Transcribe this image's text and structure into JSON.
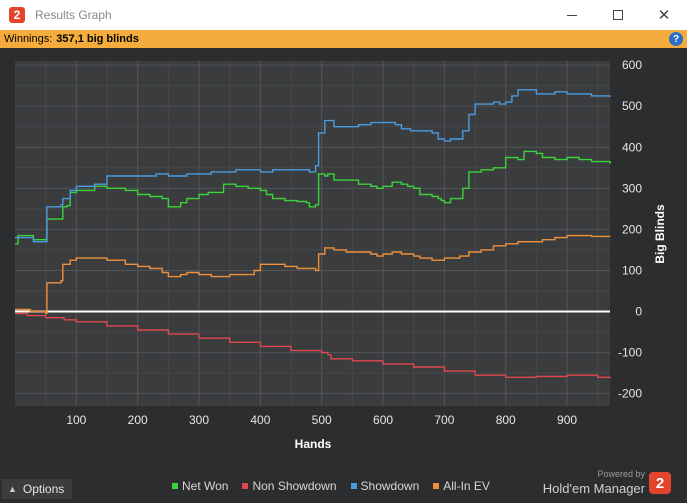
{
  "window": {
    "title": "Results Graph",
    "app_icon_glyph": "2"
  },
  "winnings": {
    "label": "Winnings:",
    "value": "357,1 big blinds"
  },
  "help_glyph": "?",
  "footer": {
    "options_label": "Options",
    "powered_by": "Powered by",
    "brand": "Hold'em Manager",
    "brand_logo_glyph": "2"
  },
  "chart_data": {
    "type": "line",
    "xlabel": "Hands",
    "ylabel": "Big Blinds",
    "xlim": [
      0,
      970
    ],
    "ylim": [
      -230,
      610
    ],
    "x_ticks": [
      100,
      200,
      300,
      400,
      500,
      600,
      700,
      800,
      900
    ],
    "y_ticks": [
      600,
      500,
      400,
      300,
      200,
      100,
      0,
      -100,
      -200
    ],
    "grid": true,
    "legend_position": "bottom",
    "colors": {
      "Net Won": "#3bd33b",
      "Non Showdown": "#e0474f",
      "Showdown": "#4a9be0",
      "All-In EV": "#ee913a",
      "zero_line": "#ffffff"
    },
    "series": [
      {
        "name": "Net Won",
        "points": [
          [
            0,
            165
          ],
          [
            5,
            185
          ],
          [
            25,
            185
          ],
          [
            30,
            175
          ],
          [
            50,
            175
          ],
          [
            52,
            225
          ],
          [
            75,
            225
          ],
          [
            78,
            255
          ],
          [
            85,
            258
          ],
          [
            90,
            290
          ],
          [
            100,
            295
          ],
          [
            130,
            305
          ],
          [
            150,
            300
          ],
          [
            180,
            295
          ],
          [
            200,
            285
          ],
          [
            220,
            280
          ],
          [
            240,
            275
          ],
          [
            250,
            255
          ],
          [
            270,
            265
          ],
          [
            280,
            275
          ],
          [
            300,
            285
          ],
          [
            315,
            290
          ],
          [
            330,
            290
          ],
          [
            340,
            310
          ],
          [
            360,
            305
          ],
          [
            380,
            300
          ],
          [
            400,
            295
          ],
          [
            410,
            285
          ],
          [
            420,
            275
          ],
          [
            440,
            270
          ],
          [
            460,
            268
          ],
          [
            475,
            265
          ],
          [
            480,
            255
          ],
          [
            490,
            260
          ],
          [
            495,
            335
          ],
          [
            505,
            330
          ],
          [
            510,
            335
          ],
          [
            520,
            320
          ],
          [
            540,
            320
          ],
          [
            560,
            310
          ],
          [
            580,
            305
          ],
          [
            590,
            300
          ],
          [
            600,
            305
          ],
          [
            615,
            315
          ],
          [
            630,
            310
          ],
          [
            640,
            305
          ],
          [
            650,
            300
          ],
          [
            660,
            285
          ],
          [
            680,
            280
          ],
          [
            690,
            275
          ],
          [
            695,
            270
          ],
          [
            700,
            265
          ],
          [
            710,
            275
          ],
          [
            730,
            300
          ],
          [
            740,
            340
          ],
          [
            760,
            345
          ],
          [
            780,
            350
          ],
          [
            800,
            375
          ],
          [
            820,
            370
          ],
          [
            830,
            390
          ],
          [
            850,
            385
          ],
          [
            860,
            375
          ],
          [
            880,
            370
          ],
          [
            900,
            375
          ],
          [
            920,
            370
          ],
          [
            940,
            365
          ],
          [
            970,
            360
          ]
        ]
      },
      {
        "name": "Non Showdown",
        "points": [
          [
            0,
            -5
          ],
          [
            20,
            -10
          ],
          [
            50,
            -15
          ],
          [
            80,
            -20
          ],
          [
            100,
            -25
          ],
          [
            150,
            -35
          ],
          [
            200,
            -45
          ],
          [
            250,
            -55
          ],
          [
            300,
            -65
          ],
          [
            350,
            -75
          ],
          [
            400,
            -85
          ],
          [
            450,
            -95
          ],
          [
            500,
            -100
          ],
          [
            510,
            -105
          ],
          [
            515,
            -115
          ],
          [
            550,
            -120
          ],
          [
            600,
            -128
          ],
          [
            650,
            -135
          ],
          [
            700,
            -145
          ],
          [
            750,
            -155
          ],
          [
            800,
            -160
          ],
          [
            850,
            -158
          ],
          [
            900,
            -155
          ],
          [
            950,
            -160
          ],
          [
            970,
            -162
          ]
        ]
      },
      {
        "name": "Showdown",
        "points": [
          [
            0,
            180
          ],
          [
            25,
            180
          ],
          [
            30,
            170
          ],
          [
            50,
            170
          ],
          [
            52,
            255
          ],
          [
            75,
            260
          ],
          [
            78,
            275
          ],
          [
            90,
            295
          ],
          [
            100,
            305
          ],
          [
            130,
            310
          ],
          [
            150,
            330
          ],
          [
            180,
            330
          ],
          [
            200,
            330
          ],
          [
            230,
            335
          ],
          [
            250,
            330
          ],
          [
            270,
            330
          ],
          [
            280,
            335
          ],
          [
            300,
            335
          ],
          [
            320,
            340
          ],
          [
            340,
            340
          ],
          [
            360,
            345
          ],
          [
            380,
            345
          ],
          [
            400,
            340
          ],
          [
            420,
            345
          ],
          [
            450,
            345
          ],
          [
            480,
            340
          ],
          [
            490,
            355
          ],
          [
            495,
            435
          ],
          [
            505,
            465
          ],
          [
            520,
            450
          ],
          [
            540,
            450
          ],
          [
            560,
            455
          ],
          [
            580,
            460
          ],
          [
            600,
            460
          ],
          [
            620,
            455
          ],
          [
            630,
            445
          ],
          [
            645,
            440
          ],
          [
            660,
            440
          ],
          [
            680,
            435
          ],
          [
            690,
            420
          ],
          [
            700,
            415
          ],
          [
            710,
            420
          ],
          [
            730,
            440
          ],
          [
            740,
            480
          ],
          [
            750,
            505
          ],
          [
            780,
            510
          ],
          [
            790,
            505
          ],
          [
            800,
            510
          ],
          [
            810,
            525
          ],
          [
            820,
            540
          ],
          [
            840,
            540
          ],
          [
            850,
            530
          ],
          [
            870,
            530
          ],
          [
            880,
            535
          ],
          [
            900,
            530
          ],
          [
            920,
            530
          ],
          [
            940,
            525
          ],
          [
            970,
            522
          ]
        ]
      },
      {
        "name": "All-In EV",
        "points": [
          [
            0,
            5
          ],
          [
            20,
            5
          ],
          [
            25,
            0
          ],
          [
            50,
            -5
          ],
          [
            52,
            70
          ],
          [
            75,
            75
          ],
          [
            78,
            115
          ],
          [
            90,
            125
          ],
          [
            100,
            130
          ],
          [
            130,
            130
          ],
          [
            150,
            125
          ],
          [
            180,
            115
          ],
          [
            200,
            110
          ],
          [
            220,
            105
          ],
          [
            240,
            95
          ],
          [
            250,
            85
          ],
          [
            270,
            90
          ],
          [
            280,
            95
          ],
          [
            300,
            90
          ],
          [
            320,
            85
          ],
          [
            340,
            85
          ],
          [
            350,
            90
          ],
          [
            380,
            90
          ],
          [
            390,
            100
          ],
          [
            400,
            115
          ],
          [
            420,
            115
          ],
          [
            440,
            110
          ],
          [
            460,
            105
          ],
          [
            475,
            105
          ],
          [
            490,
            100
          ],
          [
            495,
            140
          ],
          [
            505,
            155
          ],
          [
            520,
            150
          ],
          [
            540,
            145
          ],
          [
            560,
            145
          ],
          [
            580,
            140
          ],
          [
            590,
            135
          ],
          [
            600,
            140
          ],
          [
            615,
            145
          ],
          [
            630,
            140
          ],
          [
            640,
            140
          ],
          [
            650,
            135
          ],
          [
            660,
            130
          ],
          [
            680,
            125
          ],
          [
            700,
            130
          ],
          [
            710,
            130
          ],
          [
            725,
            135
          ],
          [
            740,
            145
          ],
          [
            760,
            150
          ],
          [
            780,
            160
          ],
          [
            800,
            165
          ],
          [
            820,
            170
          ],
          [
            840,
            170
          ],
          [
            860,
            175
          ],
          [
            880,
            180
          ],
          [
            900,
            185
          ],
          [
            920,
            185
          ],
          [
            940,
            183
          ],
          [
            970,
            182
          ]
        ]
      }
    ]
  }
}
